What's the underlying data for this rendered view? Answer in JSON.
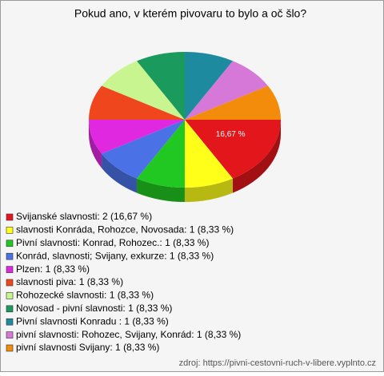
{
  "chart_data": {
    "type": "pie",
    "title": "Pokud ano, v kterém pivovaru to bylo a oč šlo?",
    "categories": [
      "Svijanské slavnosti: 2 (16,67 %)",
      "slavnosti Konráda, Rohozce, Novosada: 1 (8,33 %)",
      "Pivní slavnosti: Konrad, Rohozec.: 1 (8,33 %)",
      "Konrád, slavnosti;  Svijany, exkurze: 1 (8,33 %)",
      "Plzen: 1 (8,33 %)",
      "slavnosti piva: 1 (8,33 %)",
      "Rohozecké slavnosti: 1 (8,33 %)",
      "Novosad - pivní slavnosti: 1 (8,33 %)",
      "Pivní slavnosti Konradu : 1 (8,33 %)",
      "pivní slavnosti: Rohozec, Svijany, Konrád: 1 (8,33 %)",
      "pivní slavnosti Svijany: 1 (8,33 %)"
    ],
    "values": [
      16.67,
      8.33,
      8.33,
      8.33,
      8.33,
      8.33,
      8.33,
      8.33,
      8.33,
      8.33,
      8.33
    ],
    "value_labels": [
      "16,67 %",
      null,
      null,
      null,
      null,
      null,
      null,
      null,
      null,
      null,
      null
    ],
    "colors": [
      "#e3161b",
      "#ffff1a",
      "#22c822",
      "#4a72e6",
      "#e028e0",
      "#f0461e",
      "#c8f590",
      "#1a9a5c",
      "#1e8aa0",
      "#d678d8",
      "#f28c0a"
    ],
    "source": "zdroj: https://pivni-cestovni-ruch-v-libere.vyplnto.cz"
  }
}
